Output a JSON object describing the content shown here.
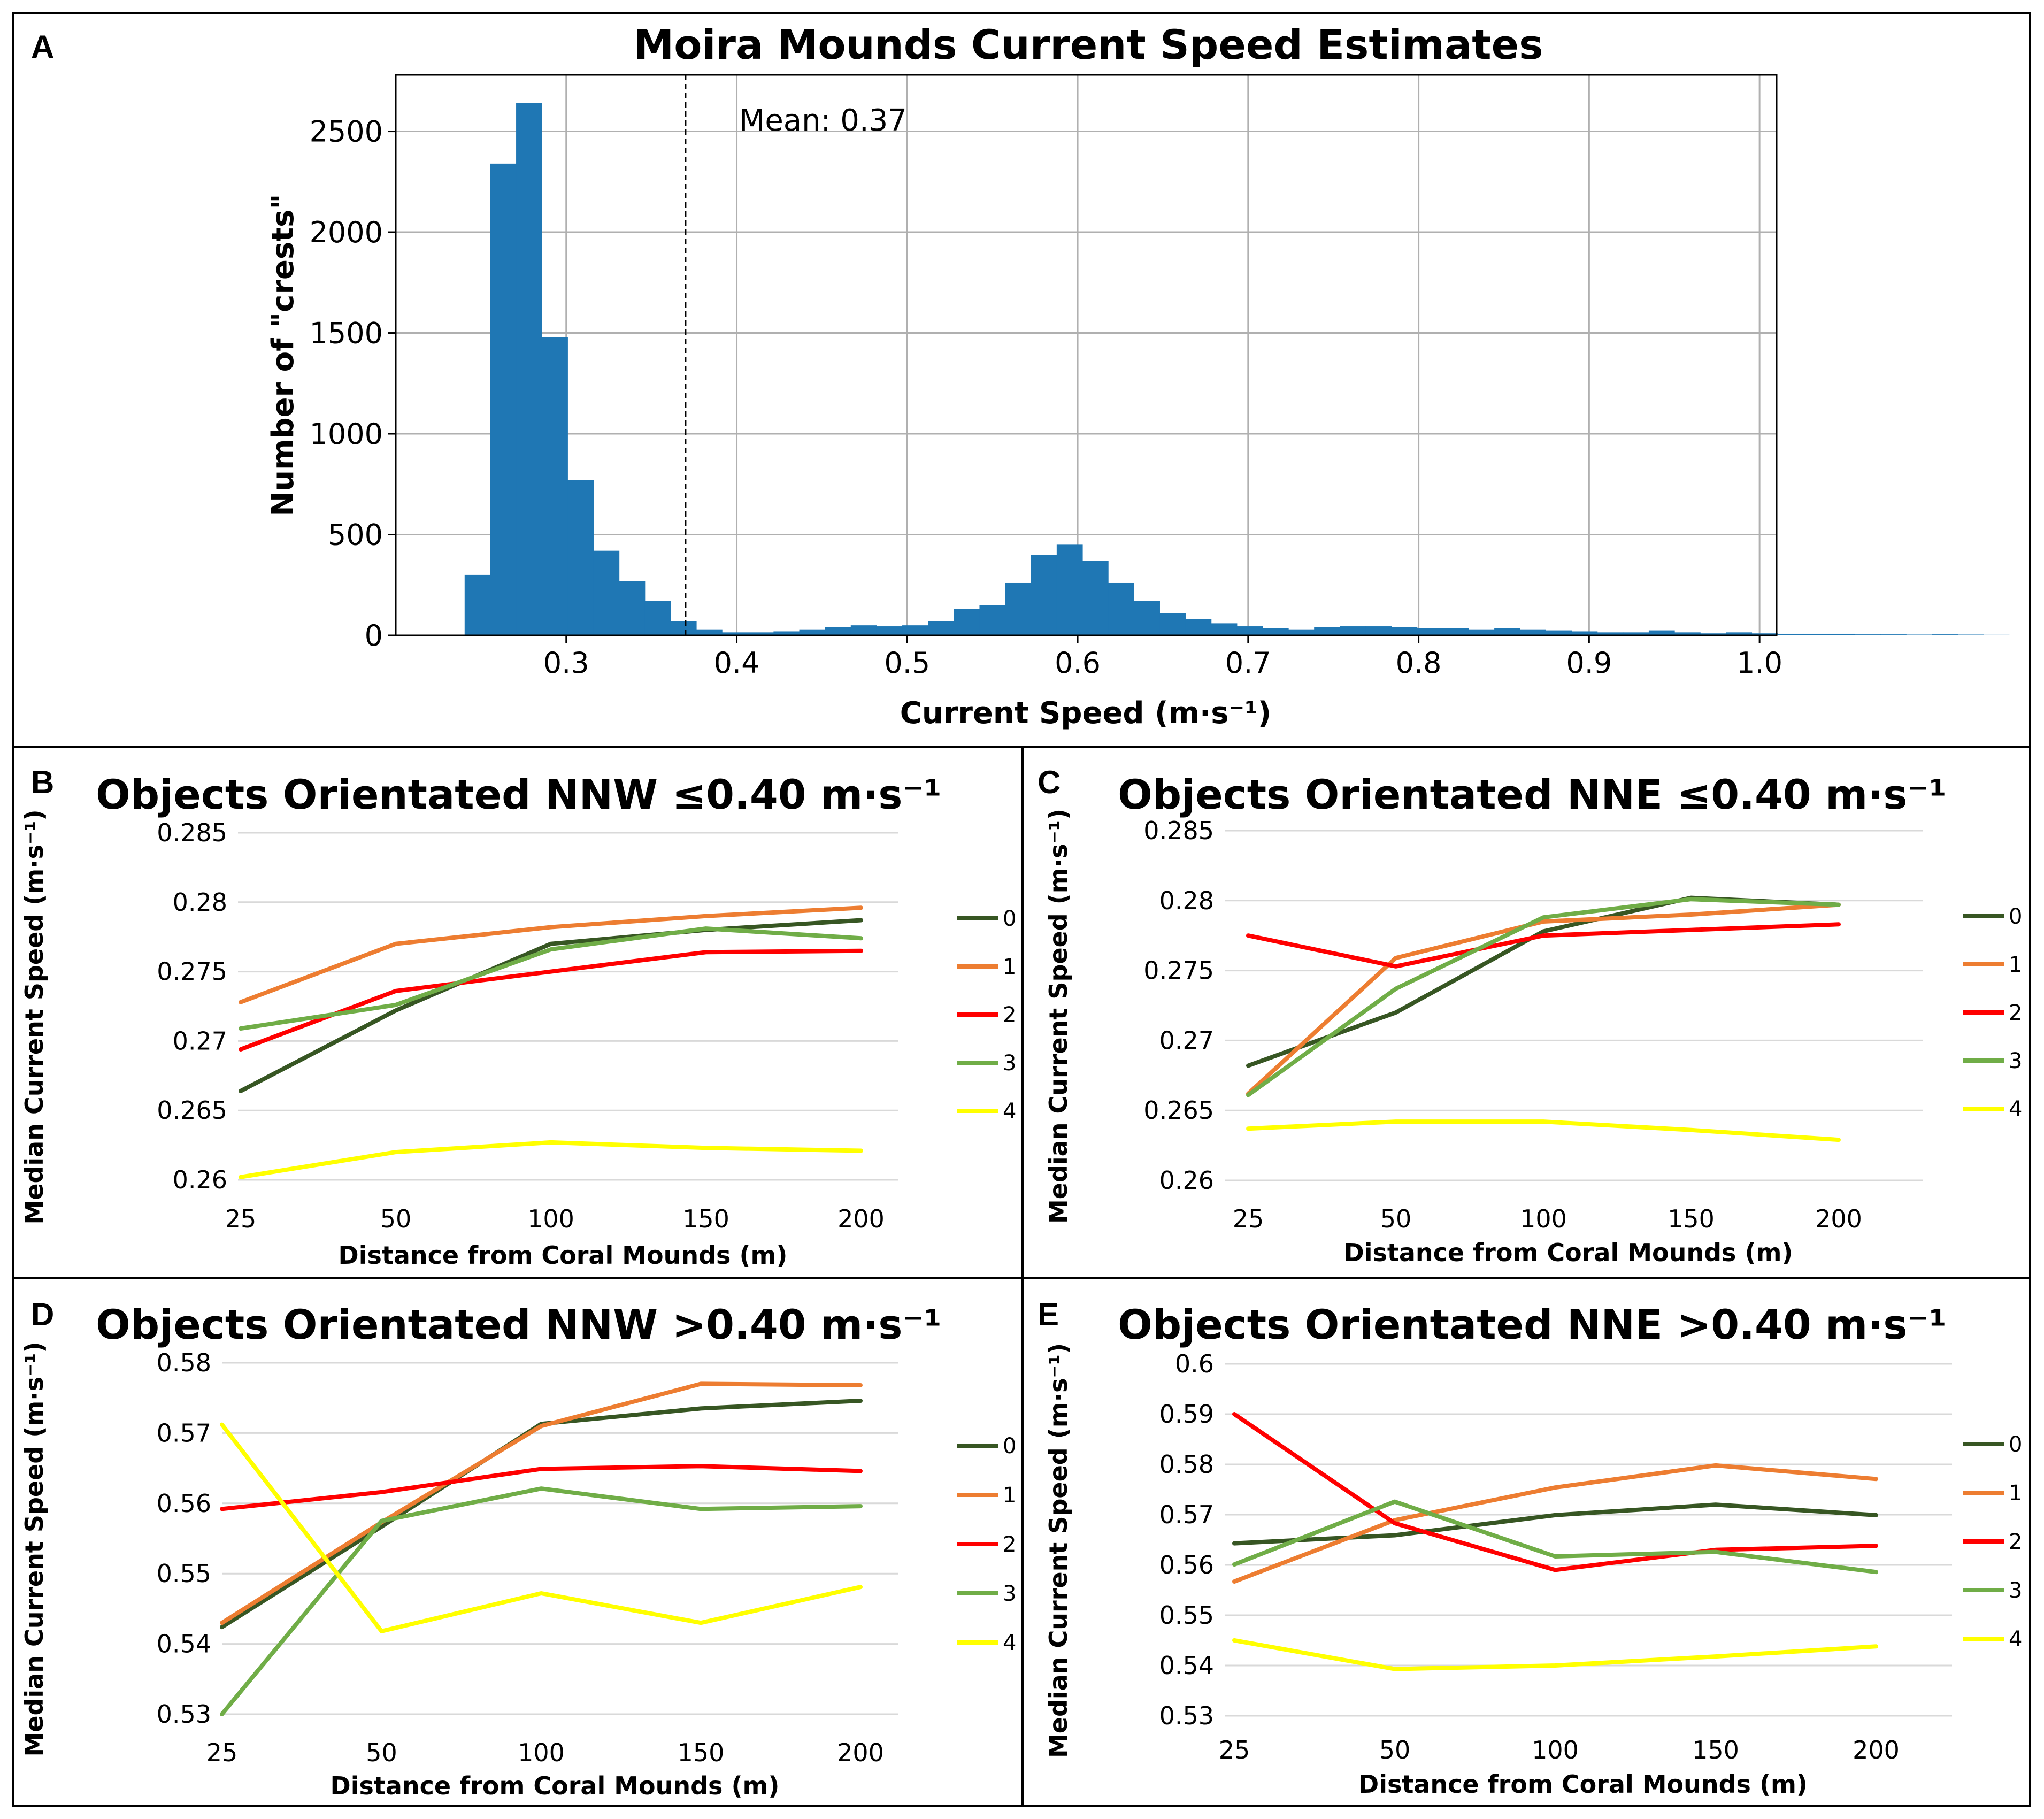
{
  "figure": {
    "panel_letters": [
      "A",
      "B",
      "C",
      "D",
      "E"
    ]
  },
  "chart_data": [
    {
      "panel": "A",
      "type": "bar",
      "title": "Moira Mounds Current Speed Estimates",
      "xlabel": "Current Speed (m·s⁻¹)",
      "ylabel": "Number of \"crests\"",
      "xlim": [
        0.2,
        1.01
      ],
      "ylim": [
        0,
        2780
      ],
      "xticks": [
        0.3,
        0.4,
        0.5,
        0.6,
        0.7,
        0.8,
        0.9,
        1.0
      ],
      "xtick_labels": [
        "0.3",
        "0.4",
        "0.5",
        "0.6",
        "0.7",
        "0.8",
        "0.9",
        "1.0"
      ],
      "yticks": [
        0,
        500,
        1000,
        1500,
        2000,
        2500
      ],
      "ytick_labels": [
        "0",
        "500",
        "1000",
        "1500",
        "2000",
        "2500"
      ],
      "grid": true,
      "bin_start": 0.2404,
      "bin_width": 0.0151,
      "counts": [
        300,
        2340,
        2640,
        1480,
        770,
        420,
        270,
        170,
        70,
        30,
        15,
        15,
        20,
        30,
        40,
        50,
        45,
        50,
        70,
        130,
        150,
        260,
        400,
        450,
        370,
        260,
        170,
        110,
        80,
        60,
        45,
        35,
        30,
        40,
        45,
        45,
        40,
        35,
        35,
        30,
        35,
        30,
        25,
        20,
        15,
        15,
        25,
        15,
        10,
        15,
        10,
        8,
        8,
        8,
        5,
        5,
        4,
        5,
        4,
        3
      ],
      "mean_value": 0.37,
      "annotation": "Mean: 0.37",
      "color": "#1f77b4"
    },
    {
      "panel": "B",
      "type": "line",
      "title": "Objects Orientated NNW ≤0.40 m·s⁻¹",
      "xlabel": "Distance from Coral Mounds (m)",
      "ylabel": "Median Current Speed (m·s⁻¹)",
      "categories": [
        "25",
        "50",
        "100",
        "150",
        "200"
      ],
      "ylim": [
        0.26,
        0.285
      ],
      "yticks": [
        0.26,
        0.265,
        0.27,
        0.275,
        0.28,
        0.285
      ],
      "ytick_labels": [
        "0.26",
        "0.265",
        "0.27",
        "0.275",
        "0.28",
        "0.285"
      ],
      "legend": "right",
      "series": [
        {
          "name": "0",
          "color": "#375623",
          "values": [
            0.2664,
            0.2722,
            0.277,
            0.278,
            0.2787
          ]
        },
        {
          "name": "1",
          "color": "#ED7D31",
          "values": [
            0.2728,
            0.277,
            0.2782,
            0.279,
            0.2796
          ]
        },
        {
          "name": "2",
          "color": "#FF0000",
          "values": [
            0.2694,
            0.2736,
            0.275,
            0.2764,
            0.2765
          ]
        },
        {
          "name": "3",
          "color": "#70AD47",
          "values": [
            0.2709,
            0.2726,
            0.2766,
            0.2781,
            0.2774
          ]
        },
        {
          "name": "4",
          "color": "#FFFF00",
          "values": [
            0.2602,
            0.262,
            0.2627,
            0.2623,
            0.2621
          ]
        }
      ]
    },
    {
      "panel": "C",
      "type": "line",
      "title": "Objects Orientated NNE ≤0.40 m·s⁻¹",
      "xlabel": "Distance from Coral Mounds (m)",
      "ylabel": "Median Current Speed (m·s⁻¹)",
      "categories": [
        "25",
        "50",
        "100",
        "150",
        "200"
      ],
      "ylim": [
        0.26,
        0.285
      ],
      "yticks": [
        0.26,
        0.265,
        0.27,
        0.275,
        0.28,
        0.285
      ],
      "ytick_labels": [
        "0.26",
        "0.265",
        "0.27",
        "0.275",
        "0.28",
        "0.285"
      ],
      "legend": "right",
      "series": [
        {
          "name": "0",
          "color": "#375623",
          "values": [
            0.2682,
            0.272,
            0.2778,
            0.2802,
            0.2797
          ]
        },
        {
          "name": "1",
          "color": "#ED7D31",
          "values": [
            0.2662,
            0.2759,
            0.2785,
            0.279,
            0.2797
          ]
        },
        {
          "name": "2",
          "color": "#FF0000",
          "values": [
            0.2775,
            0.2753,
            0.2775,
            0.2779,
            0.2783
          ]
        },
        {
          "name": "3",
          "color": "#70AD47",
          "values": [
            0.2661,
            0.2737,
            0.2788,
            0.2801,
            0.2797
          ]
        },
        {
          "name": "4",
          "color": "#FFFF00",
          "values": [
            0.2637,
            0.2642,
            0.2642,
            0.2636,
            0.2629
          ]
        }
      ]
    },
    {
      "panel": "D",
      "type": "line",
      "title": "Objects Orientated NNW >0.40 m·s⁻¹",
      "xlabel": "Distance from Coral Mounds (m)",
      "ylabel": "Median Current Speed (m·s⁻¹)",
      "categories": [
        "25",
        "50",
        "100",
        "150",
        "200"
      ],
      "ylim": [
        0.53,
        0.58
      ],
      "yticks": [
        0.53,
        0.54,
        0.55,
        0.56,
        0.57,
        0.58
      ],
      "ytick_labels": [
        "0.53",
        "0.54",
        "0.55",
        "0.56",
        "0.57",
        "0.58"
      ],
      "legend": "right",
      "series": [
        {
          "name": "0",
          "color": "#375623",
          "values": [
            0.5424,
            0.5567,
            0.5713,
            0.5735,
            0.5746
          ]
        },
        {
          "name": "1",
          "color": "#ED7D31",
          "values": [
            0.543,
            0.5573,
            0.571,
            0.577,
            0.5768
          ]
        },
        {
          "name": "2",
          "color": "#FF0000",
          "values": [
            0.5592,
            0.5616,
            0.5649,
            0.5653,
            0.5646
          ]
        },
        {
          "name": "3",
          "color": "#70AD47",
          "values": [
            0.53,
            0.5575,
            0.5621,
            0.5592,
            0.5596
          ]
        },
        {
          "name": "4",
          "color": "#FFFF00",
          "values": [
            0.5712,
            0.5418,
            0.5472,
            0.543,
            0.5481
          ]
        }
      ]
    },
    {
      "panel": "E",
      "type": "line",
      "title": "Objects Orientated NNE >0.40 m·s⁻¹",
      "xlabel": "Distance from Coral Mounds (m)",
      "ylabel": "Median Current Speed (m·s⁻¹)",
      "categories": [
        "25",
        "50",
        "100",
        "150",
        "200"
      ],
      "ylim": [
        0.53,
        0.6
      ],
      "yticks": [
        0.53,
        0.54,
        0.55,
        0.56,
        0.57,
        0.58,
        0.59,
        0.6
      ],
      "ytick_labels": [
        "0.53",
        "0.54",
        "0.55",
        "0.56",
        "0.57",
        "0.58",
        "0.59",
        "0.6"
      ],
      "legend": "right",
      "series": [
        {
          "name": "0",
          "color": "#375623",
          "values": [
            0.5643,
            0.5659,
            0.5699,
            0.572,
            0.5699
          ]
        },
        {
          "name": "1",
          "color": "#ED7D31",
          "values": [
            0.5567,
            0.5689,
            0.5754,
            0.5798,
            0.5771
          ]
        },
        {
          "name": "2",
          "color": "#FF0000",
          "values": [
            0.59,
            0.5683,
            0.559,
            0.563,
            0.5638
          ]
        },
        {
          "name": "3",
          "color": "#70AD47",
          "values": [
            0.5601,
            0.5726,
            0.5617,
            0.5626,
            0.5586
          ]
        },
        {
          "name": "4",
          "color": "#FFFF00",
          "values": [
            0.545,
            0.5393,
            0.54,
            0.5418,
            0.5438
          ]
        }
      ]
    }
  ]
}
